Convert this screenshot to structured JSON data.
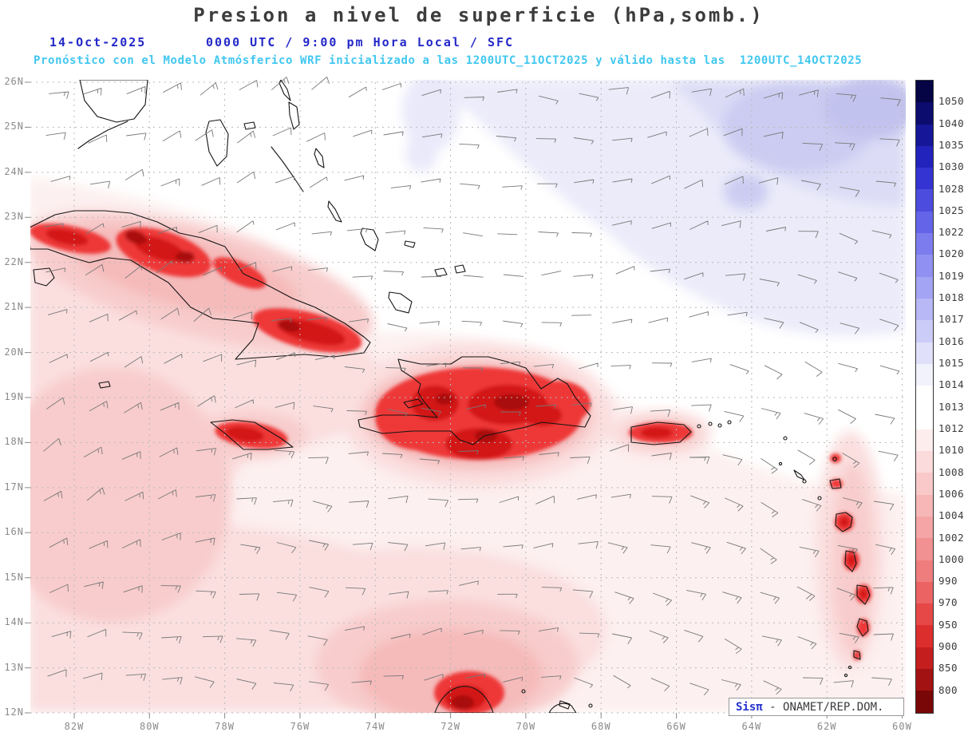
{
  "header": {
    "title": "Presion a nivel de superficie (hPa,somb.)",
    "date": "14-Oct-2025",
    "time": "0000 UTC / 9:00 pm Hora Local / SFC",
    "forecast": "Pronóstico con el Modelo Atmósferico WRF inicializado a las 1200UTC_11OCT2025 y válido hasta las  1200UTC_14OCT2025"
  },
  "map": {
    "lat_labels": [
      "26N",
      "25N",
      "24N",
      "23N",
      "22N",
      "21N",
      "20N",
      "19N",
      "18N",
      "17N",
      "16N",
      "15N",
      "14N",
      "13N",
      "12N"
    ],
    "lon_labels": [
      "82W",
      "80W",
      "78W",
      "76W",
      "74W",
      "72W",
      "70W",
      "68W",
      "66W",
      "64W",
      "62W",
      "60W"
    ]
  },
  "colorbar": {
    "unit": "hPa",
    "labels": [
      "1050",
      "1040",
      "1035",
      "1030",
      "1028",
      "1025",
      "1022",
      "1020",
      "1019",
      "1018",
      "1017",
      "1016",
      "1015",
      "1014",
      "1013",
      "1012",
      "1010",
      "1008",
      "1006",
      "1004",
      "1002",
      "1000",
      "990",
      "970",
      "950",
      "900",
      "850",
      "800"
    ],
    "colors": [
      "#050545",
      "#0c0c6e",
      "#161698",
      "#2222bc",
      "#3434d2",
      "#4c4cde",
      "#6464e8",
      "#7c7cee",
      "#9090f2",
      "#a4a4f5",
      "#b8b8f7",
      "#ccccf9",
      "#e0e0fb",
      "#f2f2fd",
      "#ffffff",
      "#ffffff",
      "#fdeded",
      "#fbdbdb",
      "#f9c9c9",
      "#f7b7b7",
      "#f5a5a5",
      "#f29191",
      "#ef7d7d",
      "#eb6363",
      "#e64848",
      "#dd2e2e",
      "#c41e1e",
      "#a31212",
      "#7a0707"
    ]
  },
  "credit": {
    "sis": "Sis",
    "pi": "π",
    "rest": " - ONAMET/REP.DOM."
  },
  "accent_colors": {
    "title_text": "#3c3c3c",
    "date_text": "#2328c8",
    "forecast_text": "#41c7f0",
    "coastline": "#141414",
    "wind_barb": "#787878"
  }
}
